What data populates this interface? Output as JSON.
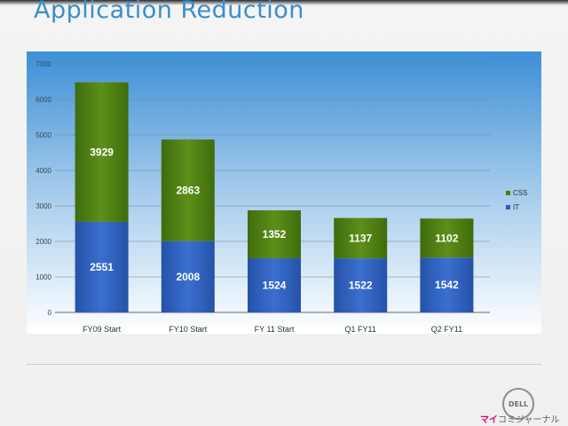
{
  "slide": {
    "title": "Application Reduction"
  },
  "chart_data": {
    "type": "bar",
    "stacked": true,
    "title": "",
    "xlabel": "",
    "ylabel": "",
    "ylim": [
      0,
      7000
    ],
    "yticks": [
      0,
      1000,
      2000,
      3000,
      4000,
      5000,
      6000,
      7000
    ],
    "grid": true,
    "legend_position": "right",
    "categories": [
      "FY09 Start",
      "FY10 Start",
      "FY 11 Start",
      "Q1 FY11",
      "Q2 FY11"
    ],
    "series": [
      {
        "name": "IT",
        "values": [
          2551,
          2008,
          1524,
          1522,
          1542
        ],
        "color": "#2f5fb8"
      },
      {
        "name": "CSS",
        "values": [
          3929,
          2863,
          1352,
          1137,
          1102
        ],
        "color": "#4f7d12"
      }
    ]
  },
  "branding": {
    "logo_text": "DELL",
    "watermark_prefix": "マイ",
    "watermark_rest": "コミジャーナル"
  }
}
